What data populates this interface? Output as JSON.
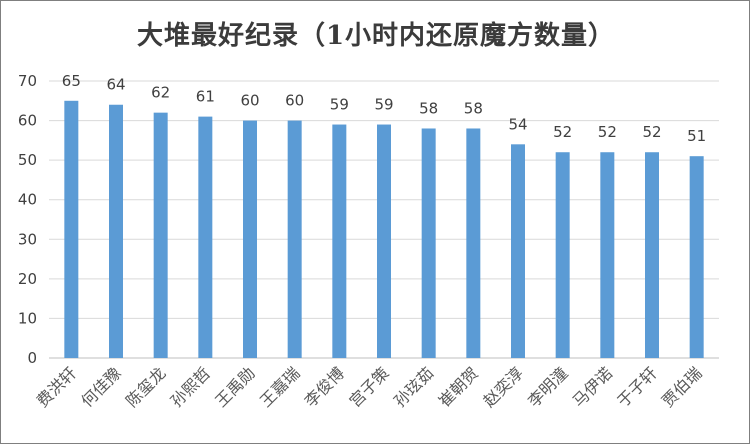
{
  "chart_data": {
    "type": "bar",
    "title": "大堆最好纪录（1小时内还原魔方数量）",
    "xlabel": "",
    "ylabel": "",
    "categories": [
      "费洪轩",
      "何佳豫",
      "陈玺龙",
      "孙熙哲",
      "王禹勋",
      "王嘉瑞",
      "李俊博",
      "宫子策",
      "孙玹茹",
      "崔朝贺",
      "赵奕淳",
      "李明潼",
      "马伊诺",
      "于子轩",
      "贾伯瑞"
    ],
    "values": [
      65,
      64,
      62,
      61,
      60,
      60,
      59,
      59,
      58,
      58,
      54,
      52,
      52,
      52,
      51
    ],
    "ylim": [
      0,
      70
    ],
    "yticks": [
      0,
      10,
      20,
      30,
      40,
      50,
      60,
      70
    ],
    "grid": true,
    "legend": "none",
    "bar_color": "#5b9bd5",
    "grid_color": "#d9d9d9",
    "axis_color": "#bfbfbf"
  }
}
